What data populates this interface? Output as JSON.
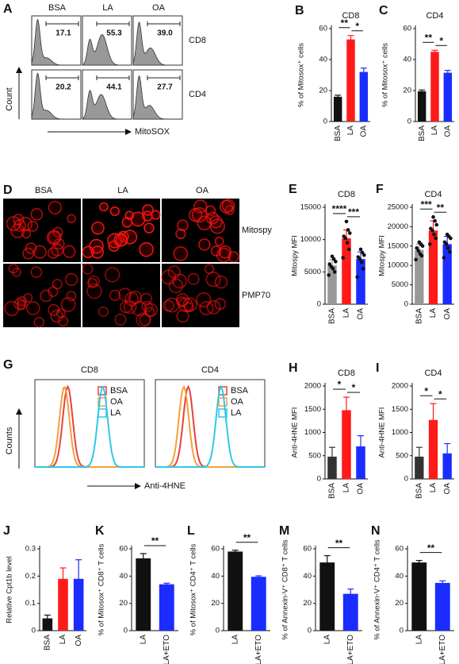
{
  "chart_data": [
    {
      "type": "bar",
      "label": "B",
      "title": "CD8",
      "ylabel": "% of Mitosox⁺ cells",
      "categories": [
        "BSA",
        "LA",
        "OA"
      ],
      "values": [
        16,
        53,
        32
      ],
      "errors": [
        1,
        2.5,
        2.5
      ],
      "colors": [
        "#111111",
        "#ff1a1a",
        "#1a2cff"
      ],
      "ylim": [
        0,
        60
      ],
      "yticks": [
        0,
        20,
        40,
        60
      ],
      "annotations": [
        {
          "text": "**",
          "categories": [
            "BSA",
            "LA"
          ]
        },
        {
          "text": "*",
          "categories": [
            "LA",
            "OA"
          ]
        }
      ]
    },
    {
      "type": "bar",
      "label": "C",
      "title": "CD4",
      "ylabel": "% of Mitosox⁺ cells",
      "categories": [
        "BSA",
        "LA",
        "OA"
      ],
      "values": [
        19.5,
        45,
        31.5
      ],
      "errors": [
        0.8,
        1,
        1.5
      ],
      "colors": [
        "#111111",
        "#ff1a1a",
        "#1a2cff"
      ],
      "ylim": [
        0,
        60
      ],
      "yticks": [
        0,
        20,
        40,
        60
      ],
      "annotations": [
        {
          "text": "**",
          "categories": [
            "BSA",
            "LA"
          ]
        },
        {
          "text": "*",
          "categories": [
            "LA",
            "OA"
          ]
        }
      ]
    },
    {
      "type": "bar",
      "label": "E",
      "title": "CD8",
      "ylabel": "Mitospy  MFI",
      "categories": [
        "BSA",
        "LA",
        "OA"
      ],
      "values": [
        6000,
        10200,
        7000
      ],
      "errors": [
        900,
        1300,
        1100
      ],
      "points": [
        [
          4500,
          5000,
          5500,
          5800,
          6200,
          6600,
          7000,
          7400
        ],
        [
          7200,
          8500,
          9500,
          10200,
          10500,
          11000,
          11500,
          12800
        ],
        [
          4200,
          5500,
          6500,
          7000,
          7300,
          7600,
          8000,
          8500
        ]
      ],
      "point_color": "#111111",
      "colors": [
        "#999999",
        "#ff1a1a",
        "#1a2cff"
      ],
      "ylim": [
        0,
        15000
      ],
      "yticks": [
        0,
        5000,
        10000,
        15000
      ],
      "annotations": [
        {
          "text": "****",
          "categories": [
            "BSA",
            "LA"
          ]
        },
        {
          "text": "***",
          "categories": [
            "LA",
            "OA"
          ]
        }
      ]
    },
    {
      "type": "bar",
      "label": "F",
      "title": "CD4",
      "ylabel": "Mitospy  MFI",
      "categories": [
        "BSA",
        "LA",
        "OA"
      ],
      "values": [
        14000,
        19000,
        15500
      ],
      "errors": [
        1500,
        2500,
        2000
      ],
      "points": [
        [
          11500,
          12500,
          13000,
          13800,
          14500,
          15000,
          15500,
          16000
        ],
        [
          15500,
          17000,
          18000,
          19000,
          19500,
          20500,
          21500,
          22500
        ],
        [
          12000,
          13500,
          14500,
          15500,
          16000,
          17000,
          17500,
          18000
        ]
      ],
      "point_color": "#111111",
      "colors": [
        "#999999",
        "#ff1a1a",
        "#1a2cff"
      ],
      "ylim": [
        0,
        25000
      ],
      "yticks": [
        0,
        5000,
        10000,
        15000,
        20000,
        25000
      ],
      "annotations": [
        {
          "text": "***",
          "categories": [
            "BSA",
            "LA"
          ]
        },
        {
          "text": "**",
          "categories": [
            "LA",
            "OA"
          ]
        }
      ]
    },
    {
      "type": "bar",
      "label": "H",
      "title": "CD8",
      "ylabel": "Anti-4HNE MFI",
      "categories": [
        "BSA",
        "LA",
        "OA"
      ],
      "values": [
        480,
        1480,
        700
      ],
      "errors": [
        200,
        280,
        230
      ],
      "colors": [
        "#333333",
        "#ff1a1a",
        "#1a2cff"
      ],
      "ylim": [
        0,
        2000
      ],
      "yticks": [
        0,
        500,
        1000,
        1500,
        2000
      ],
      "annotations": [
        {
          "text": "*",
          "categories": [
            "BSA",
            "LA"
          ]
        },
        {
          "text": "*",
          "categories": [
            "LA",
            "OA"
          ]
        }
      ]
    },
    {
      "type": "bar",
      "label": "I",
      "title": "CD4",
      "ylabel": "Anti-4HNE MFI",
      "categories": [
        "BSA",
        "LA",
        "OA"
      ],
      "values": [
        480,
        1270,
        550
      ],
      "errors": [
        200,
        350,
        210
      ],
      "colors": [
        "#333333",
        "#ff1a1a",
        "#1a2cff"
      ],
      "ylim": [
        0,
        2000
      ],
      "yticks": [
        0,
        500,
        1000,
        1500,
        2000
      ],
      "annotations": [
        {
          "text": "*",
          "categories": [
            "BSA",
            "LA"
          ]
        },
        {
          "text": "*",
          "categories": [
            "LA",
            "OA"
          ]
        }
      ]
    },
    {
      "type": "bar",
      "label": "J",
      "ylabel": "Relative Cpt1b level",
      "categories": [
        "BSA",
        "LA",
        "OA"
      ],
      "values": [
        0.045,
        0.19,
        0.19
      ],
      "errors": [
        0.012,
        0.04,
        0.07
      ],
      "colors": [
        "#111111",
        "#ff1a1a",
        "#1a2cff"
      ],
      "ylim": [
        0,
        0.3
      ],
      "yticks": [
        0,
        0.1,
        0.2,
        0.3
      ],
      "annotations": []
    },
    {
      "type": "bar",
      "label": "K",
      "ylabel": "% of Mitosox⁺ CD8⁺ T cells",
      "categories": [
        "LA",
        "LA+ETO"
      ],
      "values": [
        53,
        34
      ],
      "errors": [
        3.5,
        0.8
      ],
      "colors": [
        "#111111",
        "#1a2cff"
      ],
      "ylim": [
        0,
        60
      ],
      "yticks": [
        0,
        20,
        40,
        60
      ],
      "annotations": [
        {
          "text": "**",
          "categories": [
            "LA",
            "LA+ETO"
          ]
        }
      ]
    },
    {
      "type": "bar",
      "label": "L",
      "ylabel": "% of Mitosox⁺ CD4⁺ T cells",
      "categories": [
        "LA",
        "LA+ETO"
      ],
      "values": [
        58,
        39.5
      ],
      "errors": [
        1,
        0.7
      ],
      "colors": [
        "#111111",
        "#1a2cff"
      ],
      "ylim": [
        0,
        60
      ],
      "yticks": [
        0,
        20,
        40,
        60
      ],
      "annotations": [
        {
          "text": "**",
          "categories": [
            "LA",
            "LA+ETO"
          ]
        }
      ]
    },
    {
      "type": "bar",
      "label": "M",
      "ylabel": "% of Annexin-V⁺ CD8⁺ T cells",
      "categories": [
        "LA",
        "LA+ETO"
      ],
      "values": [
        50,
        27
      ],
      "errors": [
        5,
        3.5
      ],
      "colors": [
        "#111111",
        "#1a2cff"
      ],
      "ylim": [
        0,
        60
      ],
      "yticks": [
        0,
        20,
        40,
        60
      ],
      "annotations": [
        {
          "text": "**",
          "categories": [
            "LA",
            "LA+ETO"
          ]
        }
      ]
    },
    {
      "type": "bar",
      "label": "N",
      "ylabel": "% of Annexin-V⁺ CD4⁺ T cells",
      "categories": [
        "LA",
        "LA+ETO"
      ],
      "values": [
        50,
        35
      ],
      "errors": [
        1.5,
        1.5
      ],
      "colors": [
        "#111111",
        "#1a2cff"
      ],
      "ylim": [
        0,
        60
      ],
      "yticks": [
        0,
        20,
        40,
        60
      ],
      "annotations": [
        {
          "text": "**",
          "categories": [
            "LA",
            "LA+ETO"
          ]
        }
      ]
    }
  ],
  "flow": {
    "label": "A",
    "columns": [
      "BSA",
      "LA",
      "OA"
    ],
    "rows": [
      {
        "name": "CD8",
        "values": [
          "17.1",
          "55.3",
          "39.0"
        ]
      },
      {
        "name": "CD4",
        "values": [
          "20.2",
          "44.1",
          "27.7"
        ]
      }
    ],
    "ylabel": "Count",
    "xlabel": "MitoSOX"
  },
  "microscopy": {
    "label": "D",
    "columns": [
      "BSA",
      "LA",
      "OA"
    ],
    "rows": [
      "Mitospy",
      "PMP70"
    ]
  },
  "histograms": {
    "label": "G",
    "panels": [
      "CD8",
      "CD4"
    ],
    "series": [
      {
        "name": "BSA",
        "color": "#e8413c"
      },
      {
        "name": "OA",
        "color": "#f5a03a"
      },
      {
        "name": "LA",
        "color": "#2ec8e8"
      }
    ],
    "ylabel": "Counts",
    "xlabel": "Anti-4HNE"
  }
}
